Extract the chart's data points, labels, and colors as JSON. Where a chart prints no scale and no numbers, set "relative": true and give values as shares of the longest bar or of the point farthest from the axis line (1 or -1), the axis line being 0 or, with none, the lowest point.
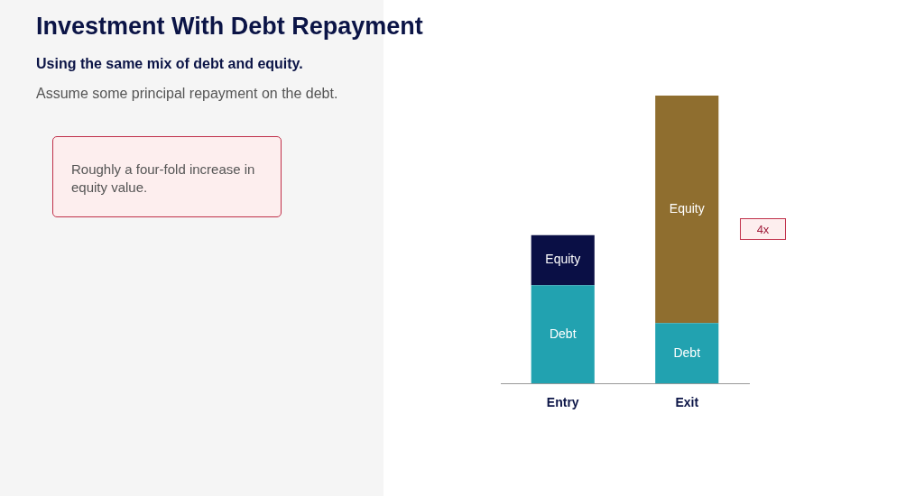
{
  "chart_data": {
    "type": "bar",
    "title": "Investment With Debt Repayment",
    "subtitle": "Using the same mix of debt and equity.",
    "categories": [
      "Entry",
      "Exit"
    ],
    "stacked": true,
    "relative": true,
    "series": [
      {
        "name": "Debt",
        "color": "#22a2b0",
        "values": [
          0.341,
          0.21
        ]
      },
      {
        "name": "Equity",
        "colors": [
          "#0a0f45",
          "#8f6e2f"
        ],
        "values": [
          0.174,
          0.79
        ]
      }
    ],
    "annotations": [
      "Assume some principal repayment on the debt.",
      "Roughly a four-fold increase in equity value.",
      "4x"
    ],
    "legend": false,
    "grid": false
  }
}
